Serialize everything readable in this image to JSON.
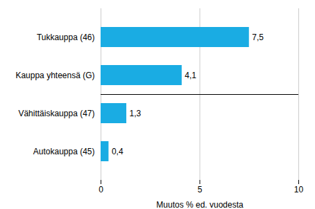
{
  "chart_data": {
    "type": "bar",
    "orientation": "horizontal",
    "categories": [
      "Tukkauppa (46)",
      "Kauppa yhteensä (G)",
      "Vähittäiskauppa (47)",
      "Autokauppa (45)"
    ],
    "values": [
      7.5,
      4.1,
      1.3,
      0.4
    ],
    "value_labels": [
      "7,5",
      "4,1",
      "1,3",
      "0,4"
    ],
    "data_labels": true,
    "color": "#1aace3",
    "xlabel": "Muutos % ed. vuodesta",
    "xlim": [
      0,
      10
    ],
    "xticks": [
      0,
      5,
      10
    ],
    "grid": true
  }
}
